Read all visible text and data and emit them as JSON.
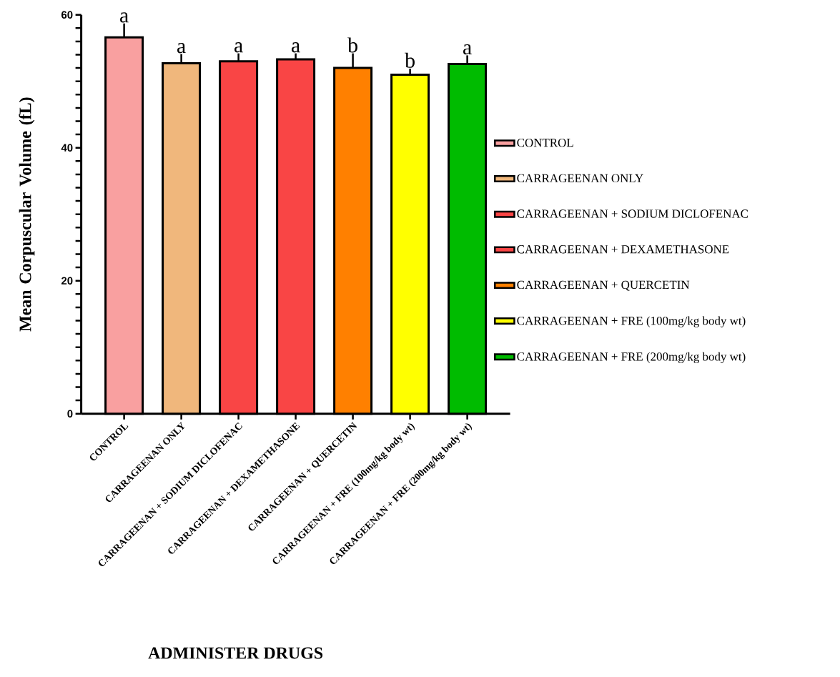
{
  "chart_data": {
    "type": "bar",
    "xlabel": "ADMINISTER DRUGS",
    "ylabel": "Mean Corpuscular Volume (fL)",
    "categories": [
      "CONTROL",
      "CARRAGEENAN ONLY",
      "CARRAGEENAN + SODIUM DICLOFENAC",
      "CARRAGEENAN + DEXAMETHASONE",
      "CARRAGEENAN + QUERCETIN",
      "CARRAGEENAN + FRE (100mg/kg body wt)",
      "CARRAGEENAN + FRE (200mg/kg body wt)"
    ],
    "series": [
      {
        "name": "CONTROL",
        "color": "#f9a0a0",
        "values": [
          56.6,
          null,
          null,
          null,
          null,
          null,
          null
        ],
        "errors": [
          [
            56.6,
            58.7
          ],
          null,
          null,
          null,
          null,
          null,
          null
        ]
      },
      {
        "name": "CARRAGEENAN ONLY",
        "color": "#f0b77c",
        "values": [
          null,
          52.7,
          null,
          null,
          null,
          null,
          null
        ],
        "errors": [
          null,
          [
            52.7,
            54.1
          ],
          null,
          null,
          null,
          null,
          null
        ]
      },
      {
        "name": "CARRAGEENAN + SODIUM DICLOFENAC",
        "color": "#f94545",
        "values": [
          null,
          null,
          53.0,
          null,
          null,
          null,
          null
        ],
        "errors": [
          null,
          null,
          [
            53.0,
            54.2
          ],
          null,
          null,
          null,
          null
        ]
      },
      {
        "name": "CARRAGEENAN + DEXAMETHASONE",
        "color": "#f94545",
        "values": [
          null,
          null,
          null,
          53.3,
          null,
          null,
          null
        ],
        "errors": [
          null,
          null,
          null,
          [
            53.3,
            54.2
          ],
          null,
          null,
          null
        ]
      },
      {
        "name": "CARRAGEENAN + QUERCETIN",
        "color": "#ff8000",
        "values": [
          null,
          null,
          null,
          null,
          52.0,
          null,
          null
        ],
        "errors": [
          null,
          null,
          null,
          null,
          [
            52.0,
            54.2
          ],
          null,
          null
        ]
      },
      {
        "name": "CARRAGEENAN + FRE (100mg/kg body wt)",
        "color": "#ffff00",
        "values": [
          null,
          null,
          null,
          null,
          null,
          51.0,
          null
        ],
        "errors": [
          null,
          null,
          null,
          null,
          null,
          [
            51.0,
            51.9
          ],
          null
        ]
      },
      {
        "name": "CARRAGEENAN + FRE (200mg/kg body wt)",
        "color": "#00bb00",
        "values": [
          null,
          null,
          null,
          null,
          null,
          null,
          52.6
        ],
        "errors": [
          null,
          null,
          null,
          null,
          null,
          null,
          [
            52.6,
            53.9
          ]
        ]
      }
    ],
    "ylim": [
      0,
      60
    ],
    "yticks": [
      0,
      {
        "value": 2,
        "label": null
      },
      {
        "value": 4,
        "label": null
      },
      {
        "value": 6,
        "label": null
      },
      {
        "value": 8,
        "label": null
      },
      {
        "value": 10,
        "label": null
      },
      {
        "value": 12,
        "label": null
      },
      {
        "value": 14,
        "label": null
      },
      {
        "value": 16,
        "label": null
      },
      {
        "value": 18,
        "label": null
      },
      20,
      {
        "value": 22,
        "label": null
      },
      {
        "value": 24,
        "label": null
      },
      {
        "value": 26,
        "label": null
      },
      {
        "value": 28,
        "label": null
      },
      {
        "value": 30,
        "label": null
      },
      {
        "value": 32,
        "label": null
      },
      {
        "value": 34,
        "label": null
      },
      {
        "value": 36,
        "label": null
      },
      {
        "value": 38,
        "label": null
      },
      40,
      {
        "value": 42,
        "label": null
      },
      {
        "value": 44,
        "label": null
      },
      {
        "value": 46,
        "label": null
      },
      {
        "value": 48,
        "label": null
      },
      {
        "value": 50,
        "label": null
      },
      {
        "value": 52,
        "label": null
      },
      {
        "value": 54,
        "label": null
      },
      {
        "value": 56,
        "label": null
      },
      {
        "value": 58,
        "label": null
      },
      60
    ],
    "annotations": [
      {
        "text": "a",
        "x": "CONTROL",
        "y": 58.7
      },
      {
        "text": "a",
        "x": "CARRAGEENAN ONLY",
        "y": 54.1
      },
      {
        "text": "a",
        "x": "CARRAGEENAN + SODIUM DICLOFENAC",
        "y": 54.2
      },
      {
        "text": "a",
        "x": "CARRAGEENAN + DEXAMETHASONE",
        "y": 54.2
      },
      {
        "text": "b",
        "x": "CARRAGEENAN + QUERCETIN",
        "y": 54.2
      },
      {
        "text": "b",
        "x": "CARRAGEENAN + FRE (100mg/kg body wt)",
        "y": 51.9
      },
      {
        "text": "a",
        "x": "CARRAGEENAN + FRE (200mg/kg body wt)",
        "y": 53.9
      }
    ],
    "legend": "right",
    "grid": false
  }
}
